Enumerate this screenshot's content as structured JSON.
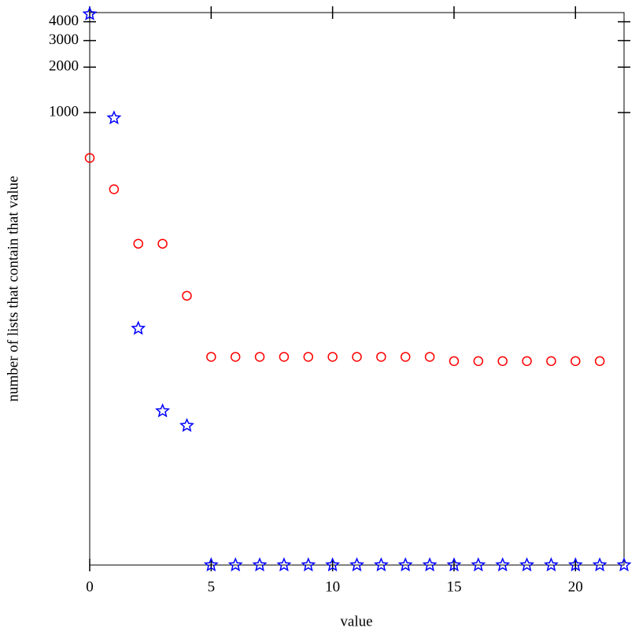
{
  "chart_data": {
    "type": "scatter",
    "x_label": "value",
    "y_label": "number of lists that contain that value",
    "log_y": true,
    "xlim": [
      0,
      22
    ],
    "xticks": [
      0,
      5,
      10,
      15,
      20
    ],
    "ylim": [
      1,
      4600
    ],
    "yticks": [
      1000,
      2000,
      3000,
      4000
    ],
    "series": [
      {
        "color": "#ff0000",
        "marker": "circle",
        "x": [
          0,
          1,
          2,
          3,
          4,
          5,
          6,
          7,
          8,
          9,
          10,
          11,
          12,
          13,
          14,
          15,
          16,
          17,
          18,
          19,
          20,
          21
        ],
        "values": [
          500,
          310,
          135,
          135,
          61,
          24,
          24,
          24,
          24,
          24,
          24,
          24,
          24,
          24,
          24,
          22.5,
          22.5,
          22.5,
          22.5,
          22.5,
          22.5,
          22.5
        ]
      },
      {
        "color": "#0000ff",
        "marker": "star",
        "x": [
          0,
          1,
          2,
          3,
          4,
          5,
          6,
          7,
          8,
          9,
          10,
          11,
          12,
          13,
          14,
          15,
          16,
          17,
          18,
          19,
          20,
          21,
          22
        ],
        "values": [
          4500,
          920,
          37,
          10.5,
          8.4,
          1,
          1,
          1,
          1,
          1,
          1,
          1,
          1,
          1,
          1,
          1,
          1,
          1,
          1,
          1,
          1,
          1,
          1
        ]
      }
    ]
  }
}
